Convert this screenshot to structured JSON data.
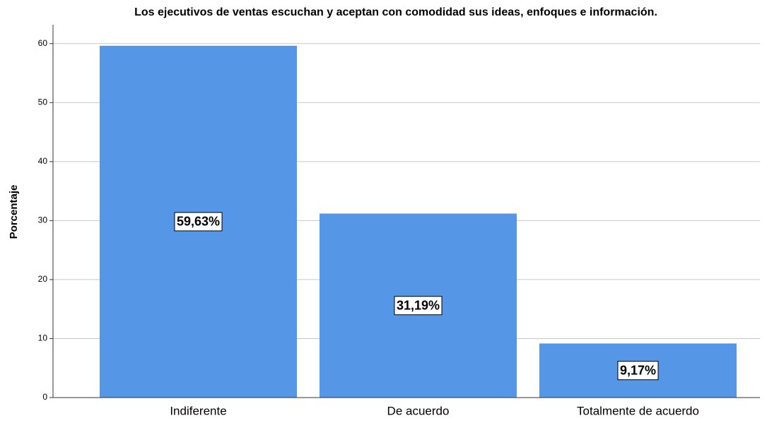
{
  "chart_data": {
    "type": "bar",
    "title": "Los ejecutivos de ventas escuchan y aceptan con comodidad sus ideas, enfoques e información.",
    "y_label": "Porcentaje",
    "categories": [
      "Indiferente",
      "De acuerdo",
      "Totalmente de acuerdo"
    ],
    "values": [
      59.63,
      31.19,
      9.17
    ],
    "value_labels": [
      "59,63%",
      "31,19%",
      "9,17%"
    ],
    "color": "#5596e6",
    "ylim": [
      0,
      63.2
    ],
    "yticks": [
      0,
      10,
      20,
      30,
      40,
      50,
      60
    ],
    "grid": true
  }
}
